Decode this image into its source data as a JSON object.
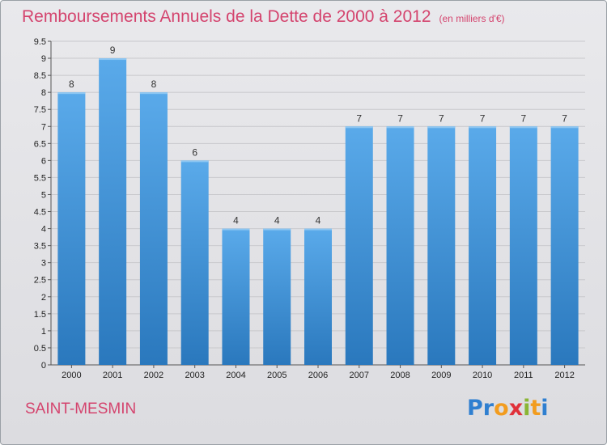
{
  "title": "Remboursements Annuels de la Dette de 2000 à 2012",
  "title_unit": "(en milliers d'€)",
  "commune": "SAINT-MESMIN",
  "logo": {
    "text": "Proxiti",
    "letters": [
      {
        "ch": "P",
        "color": "#2f7fd0"
      },
      {
        "ch": "r",
        "color": "#2f7fd0"
      },
      {
        "ch": "o",
        "color": "#f29c1f"
      },
      {
        "ch": "x",
        "color": "#e0313a"
      },
      {
        "ch": "i",
        "color": "#8ab534"
      },
      {
        "ch": "t",
        "color": "#f29c1f"
      },
      {
        "ch": "i",
        "color": "#2f7fd0"
      }
    ]
  },
  "colors": {
    "title": "#d4446e",
    "bar_top": "#5aaaea",
    "bar_bottom": "#2a78bd",
    "grid": "#c8c8cc"
  },
  "chart_data": {
    "type": "bar",
    "title": "Remboursements Annuels de la Dette de 2000 à 2012",
    "categories": [
      "2000",
      "2001",
      "2002",
      "2003",
      "2004",
      "2005",
      "2006",
      "2007",
      "2008",
      "2009",
      "2010",
      "2011",
      "2012"
    ],
    "values": [
      8,
      9,
      8,
      6,
      4,
      4,
      4,
      7,
      7,
      7,
      7,
      7,
      7
    ],
    "data_labels": [
      "8",
      "9",
      "8",
      "6",
      "4",
      "4",
      "4",
      "7",
      "7",
      "7",
      "7",
      "7",
      "7"
    ],
    "ylim": [
      0,
      9.5
    ],
    "yticks": [
      0,
      0.5,
      1,
      1.5,
      2,
      2.5,
      3,
      3.5,
      4,
      4.5,
      5,
      5.5,
      6,
      6.5,
      7,
      7.5,
      8,
      8.5,
      9,
      9.5
    ],
    "ytick_labels": [
      "0",
      "0.5",
      "1",
      "1.5",
      "2",
      "2.5",
      "3",
      "3.5",
      "4",
      "4.5",
      "5",
      "5.5",
      "6",
      "6.5",
      "7",
      "7.5",
      "8",
      "8.5",
      "9",
      "9.5"
    ],
    "grid": true,
    "legend": "none"
  }
}
